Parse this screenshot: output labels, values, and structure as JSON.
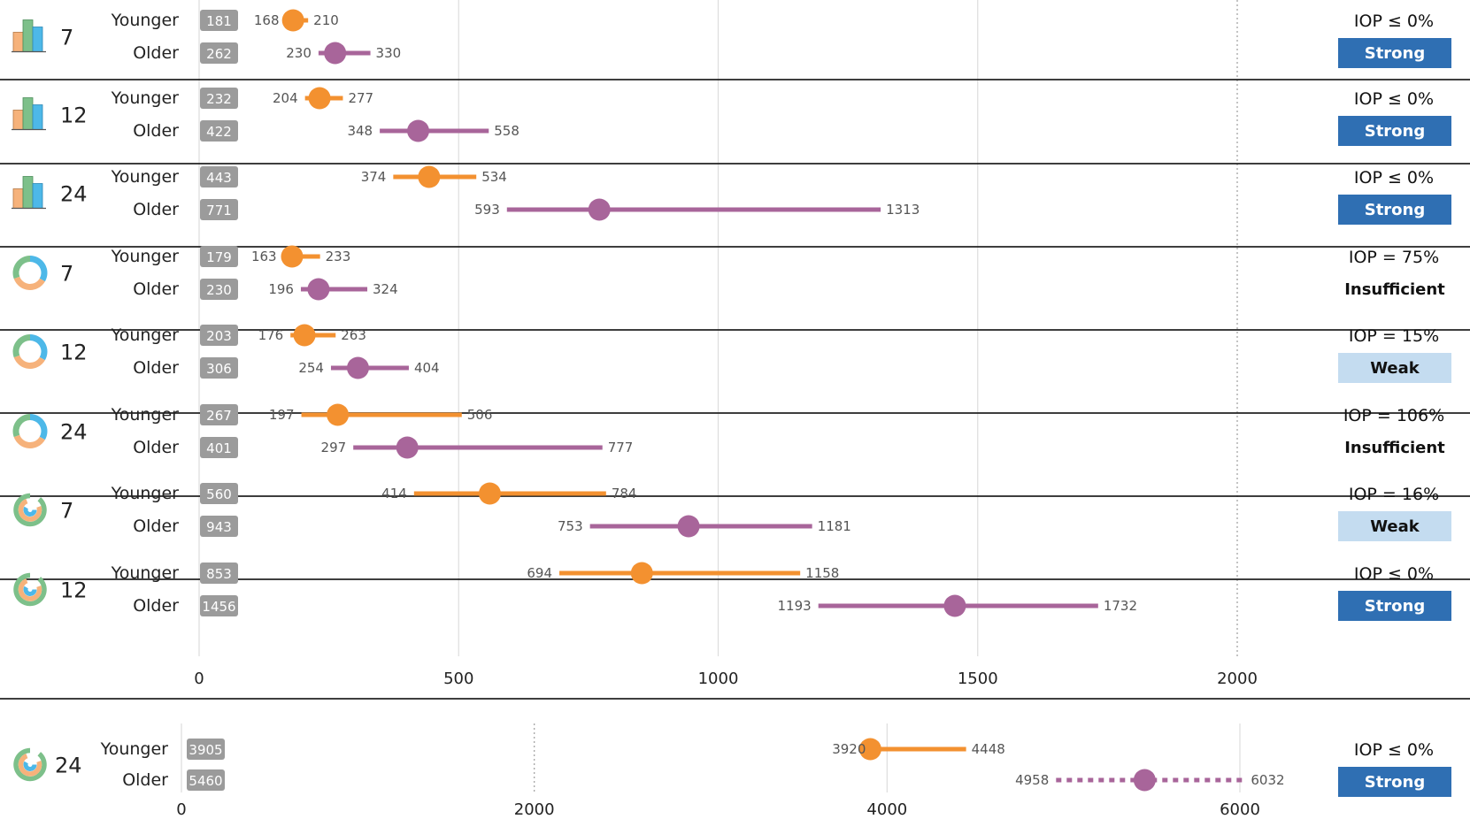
{
  "chart_data": {
    "type": "dot-interval",
    "group_labels": {
      "younger": "Younger",
      "older": "Older"
    },
    "colors": {
      "younger": "#F39130",
      "older": "#A8659A",
      "strong_bg": "#2F6FB3",
      "strong_fg": "#FFFFFF",
      "weak_bg": "#C4DCF0",
      "weak_fg": "#111111",
      "insufficient_bg": "#FFFFFF",
      "insufficient_fg": "#111111",
      "bar_green": "#7DC08A",
      "bar_blue": "#4DB8E8",
      "bar_orange": "#F6B27B"
    },
    "main_axis": {
      "ticks": [
        0,
        500,
        1000,
        1500,
        2000
      ],
      "tick_labels": [
        "0",
        "500",
        "1000",
        "1500",
        "2000"
      ],
      "range": [
        0,
        2000
      ],
      "dotted_ticks": [
        2000
      ]
    },
    "last_axis": {
      "ticks": [
        0,
        2000,
        4000,
        6000
      ],
      "tick_labels": [
        "0",
        "2000",
        "4000",
        "6000"
      ],
      "range": [
        0,
        6000
      ],
      "dotted_ticks": [
        2000
      ]
    },
    "rows": [
      {
        "icon": "bar-chart-icon",
        "n": "7",
        "younger": {
          "median": 181,
          "median_label": "181",
          "lo": 168,
          "lo_label": "168",
          "hi": 210,
          "hi_label": "210"
        },
        "older": {
          "median": 262,
          "median_label": "262",
          "lo": 230,
          "lo_label": "230",
          "hi": 330,
          "hi_label": "330"
        },
        "iop": "IOP ≤ 0%",
        "verdict": "Strong",
        "verdict_type": "strong"
      },
      {
        "icon": "bar-chart-icon",
        "n": "12",
        "younger": {
          "median": 232,
          "median_label": "232",
          "lo": 204,
          "lo_label": "204",
          "hi": 277,
          "hi_label": "277"
        },
        "older": {
          "median": 422,
          "median_label": "422",
          "lo": 348,
          "lo_label": "348",
          "hi": 558,
          "hi_label": "558"
        },
        "iop": "IOP ≤ 0%",
        "verdict": "Strong",
        "verdict_type": "strong"
      },
      {
        "icon": "bar-chart-icon",
        "n": "24",
        "younger": {
          "median": 443,
          "median_label": "443",
          "lo": 374,
          "lo_label": "374",
          "hi": 534,
          "hi_label": "534"
        },
        "older": {
          "median": 771,
          "median_label": "771",
          "lo": 593,
          "lo_label": "593",
          "hi": 1313,
          "hi_label": "1313"
        },
        "iop": "IOP ≤ 0%",
        "verdict": "Strong",
        "verdict_type": "strong"
      },
      {
        "icon": "donut-icon",
        "n": "7",
        "younger": {
          "median": 179,
          "median_label": "179",
          "lo": 163,
          "lo_label": "163",
          "hi": 233,
          "hi_label": "233"
        },
        "older": {
          "median": 230,
          "median_label": "230",
          "lo": 196,
          "lo_label": "196",
          "hi": 324,
          "hi_label": "324"
        },
        "iop": "IOP = 75%",
        "verdict": "Insufficient",
        "verdict_type": "insufficient"
      },
      {
        "icon": "donut-icon",
        "n": "12",
        "younger": {
          "median": 203,
          "median_label": "203",
          "lo": 176,
          "lo_label": "176",
          "hi": 263,
          "hi_label": "263"
        },
        "older": {
          "median": 306,
          "median_label": "306",
          "lo": 254,
          "lo_label": "254",
          "hi": 404,
          "hi_label": "404"
        },
        "iop": "IOP = 15%",
        "verdict": "Weak",
        "verdict_type": "weak"
      },
      {
        "icon": "donut-icon",
        "n": "24",
        "younger": {
          "median": 267,
          "median_label": "267",
          "lo": 197,
          "lo_label": "197",
          "hi": 506,
          "hi_label": "506"
        },
        "older": {
          "median": 401,
          "median_label": "401",
          "lo": 297,
          "lo_label": "297",
          "hi": 777,
          "hi_label": "777"
        },
        "iop": "IOP = 106%",
        "verdict": "Insufficient",
        "verdict_type": "insufficient"
      },
      {
        "icon": "radial-bar-icon",
        "n": "7",
        "younger": {
          "median": 560,
          "median_label": "560",
          "lo": 414,
          "lo_label": "414",
          "hi": 784,
          "hi_label": "784"
        },
        "older": {
          "median": 943,
          "median_label": "943",
          "lo": 753,
          "lo_label": "753",
          "hi": 1181,
          "hi_label": "1181"
        },
        "iop": "IOP = 16%",
        "verdict": "Weak",
        "verdict_type": "weak"
      },
      {
        "icon": "radial-bar-icon",
        "n": "12",
        "younger": {
          "median": 853,
          "median_label": "853",
          "lo": 694,
          "lo_label": "694",
          "hi": 1158,
          "hi_label": "1158"
        },
        "older": {
          "median": 1456,
          "median_label": "1456",
          "lo": 1193,
          "lo_label": "1193",
          "hi": 1732,
          "hi_label": "1732"
        },
        "iop": "IOP ≤ 0%",
        "verdict": "Strong",
        "verdict_type": "strong"
      },
      {
        "icon": "radial-bar-icon",
        "n": "24",
        "younger": {
          "median": 3905,
          "median_label": "3905",
          "lo": 3920,
          "lo_label": "3920",
          "hi": 4448,
          "hi_label": "4448"
        },
        "older": {
          "median": 5460,
          "median_label": "5460",
          "lo": 4958,
          "lo_label": "4958",
          "hi": 6032,
          "hi_label": "6032",
          "dotted": true
        },
        "iop": "IOP ≤ 0%",
        "verdict": "Strong",
        "verdict_type": "strong"
      }
    ]
  }
}
